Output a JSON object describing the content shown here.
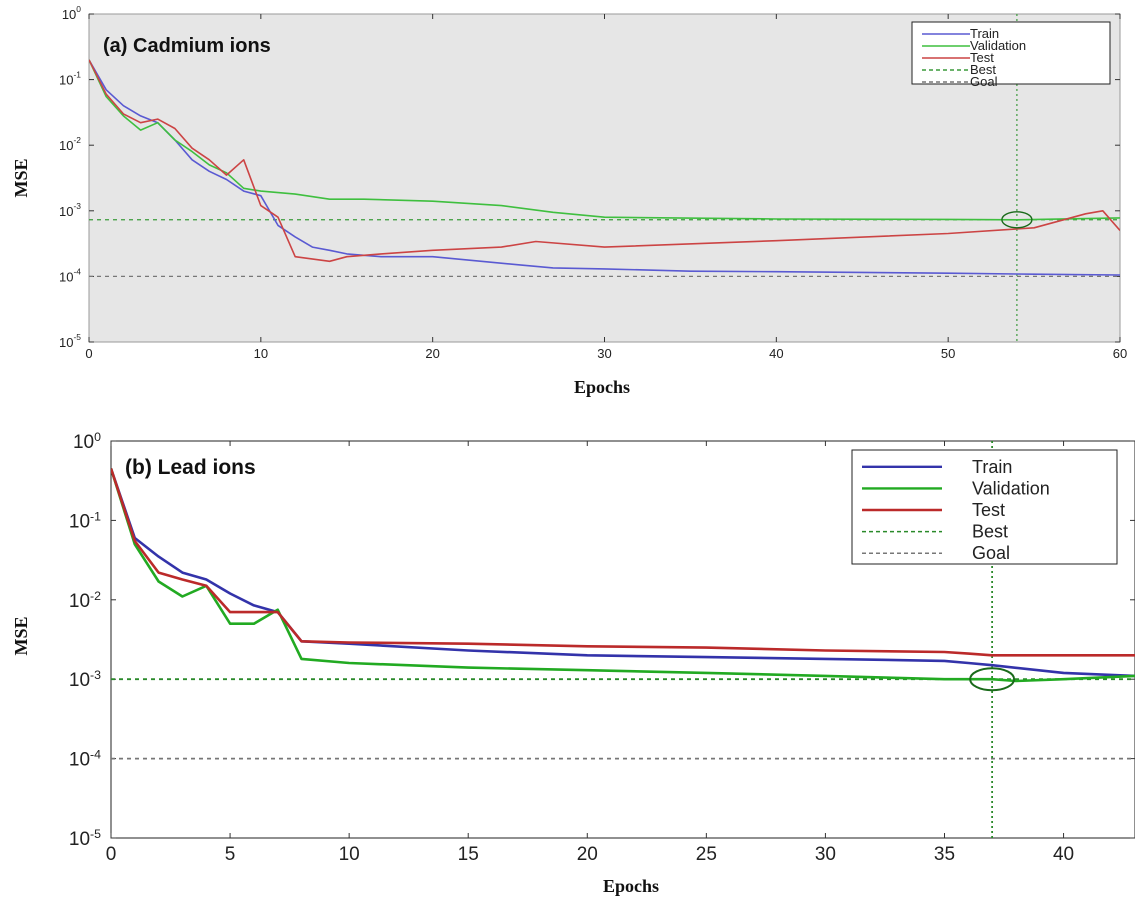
{
  "chart_data": [
    {
      "type": "line",
      "panel_label": "(a) Cadmium ions",
      "xlabel": "Epochs",
      "ylabel": "MSE",
      "xlim": [
        0,
        60
      ],
      "ylim": [
        1e-05,
        1
      ],
      "yscale": "log",
      "x_ticks": [
        "0",
        "10",
        "20",
        "30",
        "40",
        "50",
        "60"
      ],
      "y_ticks": [
        "10^-5",
        "10^-4",
        "10^-3",
        "10^-2",
        "10^-1",
        "10^0"
      ],
      "grid": false,
      "legend_position": "top-right",
      "colors": {
        "train": "#5a5ad2",
        "validation": "#3fbf3f",
        "test": "#cc4444",
        "best": "#3a9a3a",
        "goal": "#777777"
      },
      "series": [
        {
          "name": "Train",
          "x": [
            0,
            1,
            2,
            3,
            4,
            5,
            6,
            7,
            8,
            9,
            10,
            11,
            12,
            13,
            14,
            15,
            17,
            20,
            25,
            27,
            30,
            35,
            40,
            50,
            55,
            60
          ],
          "y": [
            0.2,
            0.07,
            0.04,
            0.028,
            0.022,
            0.012,
            0.006,
            0.004,
            0.003,
            0.002,
            0.0017,
            0.0006,
            0.0004,
            0.00028,
            0.00025,
            0.00022,
            0.0002,
            0.0002,
            0.00015,
            0.000135,
            0.00013,
            0.00012,
            0.000118,
            0.000112,
            0.000108,
            0.000105
          ]
        },
        {
          "name": "Validation",
          "x": [
            0,
            1,
            2,
            3,
            4,
            5,
            6,
            7,
            8,
            9,
            10,
            12,
            14,
            16,
            20,
            24,
            27,
            30,
            40,
            50,
            54,
            60
          ],
          "y": [
            0.2,
            0.055,
            0.028,
            0.017,
            0.022,
            0.012,
            0.008,
            0.005,
            0.0038,
            0.0022,
            0.002,
            0.0018,
            0.0015,
            0.0015,
            0.0014,
            0.0012,
            0.00095,
            0.0008,
            0.00075,
            0.00074,
            0.00073,
            0.00078
          ]
        },
        {
          "name": "Test",
          "x": [
            0,
            1,
            2,
            3,
            4,
            5,
            6,
            7,
            8,
            9,
            10,
            11,
            12,
            14,
            15,
            17,
            20,
            24,
            26,
            30,
            40,
            50,
            55,
            58,
            59,
            60
          ],
          "y": [
            0.2,
            0.06,
            0.03,
            0.022,
            0.025,
            0.018,
            0.009,
            0.006,
            0.0035,
            0.006,
            0.0012,
            0.0008,
            0.0002,
            0.00017,
            0.0002,
            0.00022,
            0.00025,
            0.00028,
            0.00034,
            0.00028,
            0.00035,
            0.00045,
            0.00055,
            0.0009,
            0.001,
            0.0005
          ]
        }
      ],
      "best": {
        "label": "Best",
        "epoch": 54,
        "value": 0.00073
      },
      "goal": {
        "label": "Goal",
        "value": 0.0001
      }
    },
    {
      "type": "line",
      "panel_label": "(b) Lead ions",
      "xlabel": "Epochs",
      "ylabel": "MSE",
      "xlim": [
        0,
        43
      ],
      "ylim": [
        1e-05,
        1
      ],
      "yscale": "log",
      "x_ticks": [
        "0",
        "5",
        "10",
        "15",
        "20",
        "25",
        "30",
        "35",
        "40"
      ],
      "y_ticks": [
        "10^-5",
        "10^-4",
        "10^-3",
        "10^-2",
        "10^-1",
        "10^0"
      ],
      "grid": false,
      "legend_position": "top-right",
      "colors": {
        "train": "#3333aa",
        "validation": "#22aa22",
        "test": "#bb2a2a",
        "best": "#2a8a2a",
        "goal": "#777777"
      },
      "series": [
        {
          "name": "Train",
          "x": [
            0,
            1,
            2,
            3,
            4,
            5,
            6,
            7,
            8,
            10,
            15,
            20,
            25,
            30,
            35,
            36,
            37,
            40,
            43
          ],
          "y": [
            0.45,
            0.06,
            0.035,
            0.022,
            0.018,
            0.012,
            0.0085,
            0.007,
            0.003,
            0.0028,
            0.0023,
            0.002,
            0.0019,
            0.0018,
            0.0017,
            0.0016,
            0.0015,
            0.0012,
            0.0011
          ]
        },
        {
          "name": "Validation",
          "x": [
            0,
            1,
            2,
            3,
            4,
            5,
            6,
            7,
            8,
            10,
            15,
            20,
            25,
            30,
            35,
            37,
            38,
            40,
            43
          ],
          "y": [
            0.45,
            0.05,
            0.017,
            0.011,
            0.015,
            0.005,
            0.005,
            0.0075,
            0.0018,
            0.0016,
            0.0014,
            0.0013,
            0.0012,
            0.0011,
            0.001,
            0.001,
            0.00095,
            0.001,
            0.0011
          ]
        },
        {
          "name": "Test",
          "x": [
            0,
            1,
            2,
            3,
            4,
            5,
            6,
            7,
            8,
            10,
            15,
            20,
            25,
            30,
            35,
            36,
            37,
            40,
            43
          ],
          "y": [
            0.45,
            0.055,
            0.022,
            0.018,
            0.015,
            0.007,
            0.007,
            0.007,
            0.003,
            0.0029,
            0.0028,
            0.0026,
            0.0025,
            0.0023,
            0.0022,
            0.0021,
            0.002,
            0.002,
            0.002
          ]
        }
      ],
      "best": {
        "label": "Best",
        "epoch": 37,
        "value": 0.001
      },
      "goal": {
        "label": "Goal",
        "value": 0.0001
      }
    }
  ]
}
